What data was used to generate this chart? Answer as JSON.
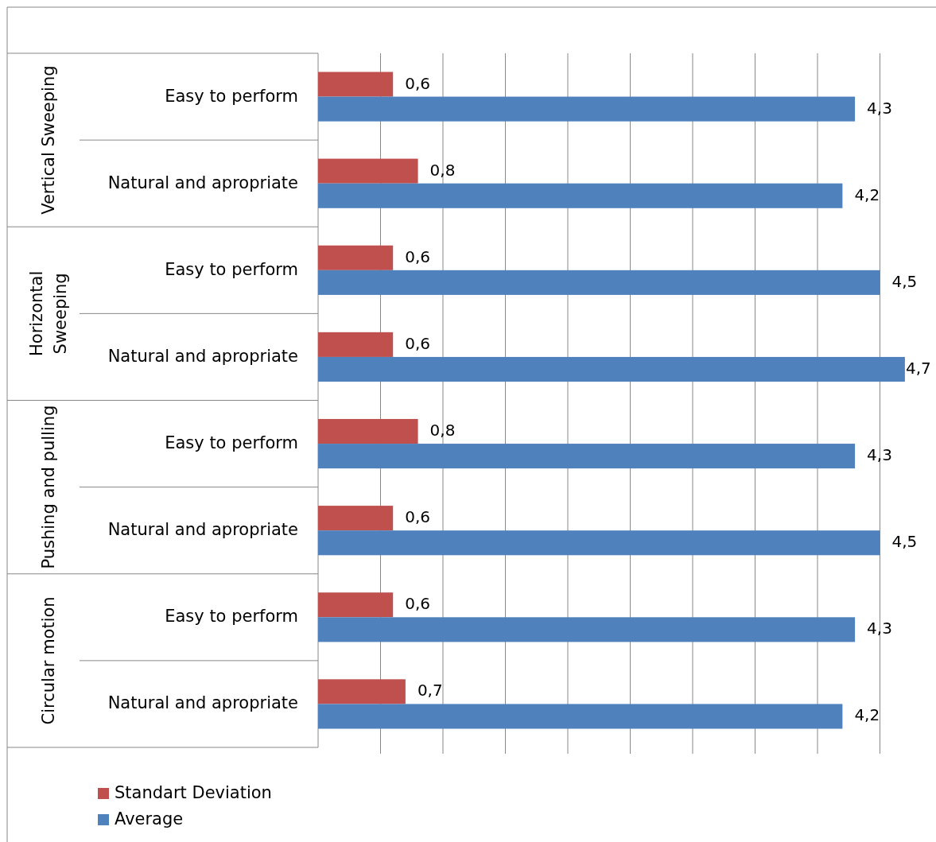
{
  "chart_data": {
    "type": "bar",
    "orientation": "horizontal",
    "categories": [
      "Easy to perform",
      "Natural and apropriate",
      "Easy to perform",
      "Natural and apropriate",
      "Easy to perform",
      "Natural and apropriate",
      "Easy to perform",
      "Natural and apropriate"
    ],
    "series": [
      {
        "name": "Standart Deviation",
        "color": "#c0504d",
        "values": [
          0.6,
          0.8,
          0.6,
          0.6,
          0.8,
          0.6,
          0.6,
          0.7
        ],
        "value_labels": [
          "0,6",
          "0,8",
          "0,6",
          "0,6",
          "0,8",
          "0,6",
          "0,6",
          "0,7"
        ]
      },
      {
        "name": "Average",
        "color": "#4f81bd",
        "values": [
          4.3,
          4.2,
          4.5,
          4.7,
          4.3,
          4.5,
          4.3,
          4.2
        ],
        "value_labels": [
          "4,3",
          "4,2",
          "4,5",
          "4,7",
          "4,3",
          "4,5",
          "4,3",
          "4,2"
        ]
      }
    ],
    "annotations": [
      "Vertical Sweeping",
      "Horizontal Sweeping",
      "Pushing and pulling",
      "Circular motion"
    ],
    "tick_labels": "y",
    "grid": "x",
    "legend": "bottom left"
  }
}
